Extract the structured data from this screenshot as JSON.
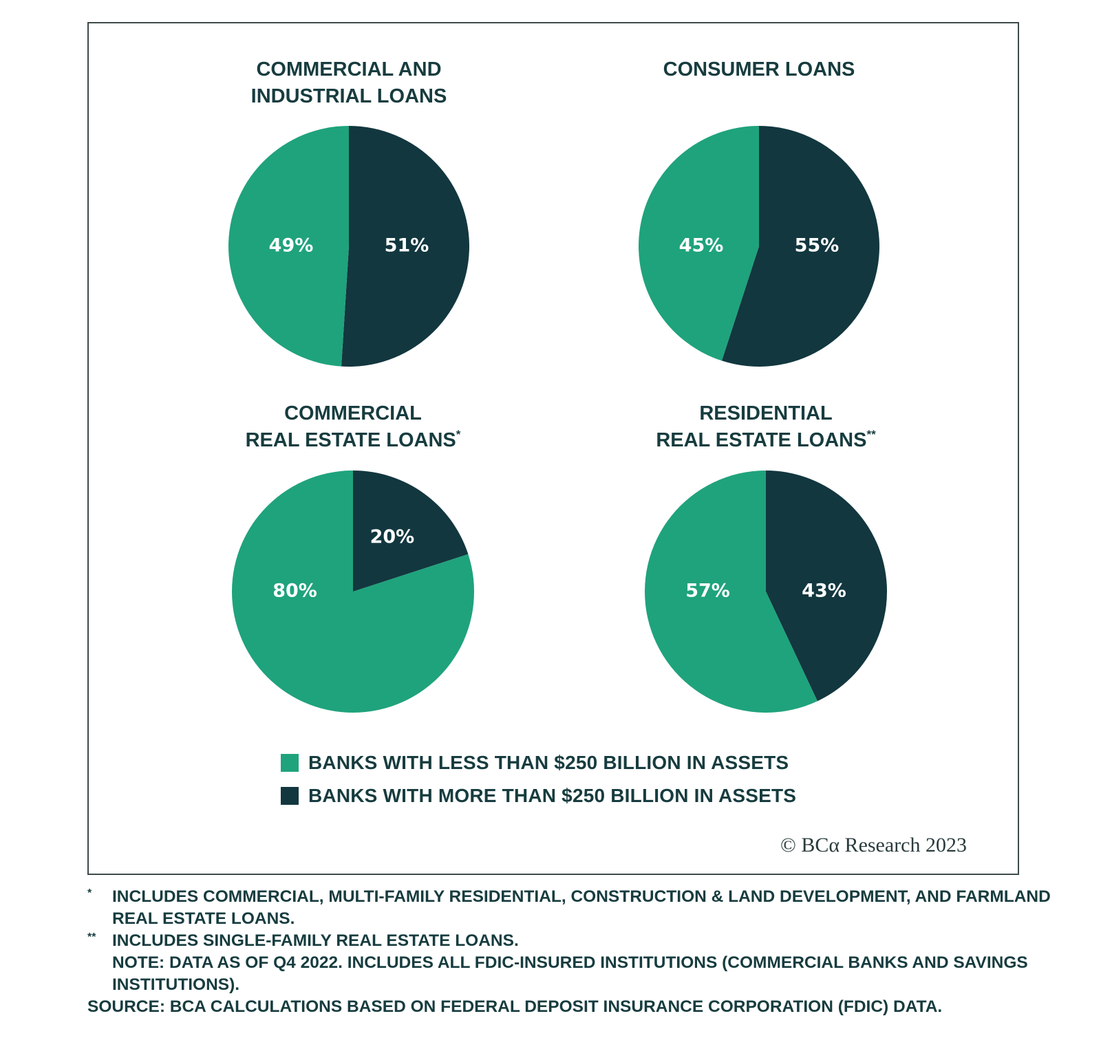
{
  "chart_data": [
    {
      "type": "pie",
      "title": [
        "COMMERCIAL AND",
        "INDUSTRIAL LOANS"
      ],
      "title_mark": "",
      "slices": [
        {
          "series": "small",
          "label": "49%",
          "value": 49
        },
        {
          "series": "large",
          "label": "51%",
          "value": 51
        }
      ]
    },
    {
      "type": "pie",
      "title": [
        "CONSUMER LOANS"
      ],
      "title_mark": "",
      "slices": [
        {
          "series": "small",
          "label": "45%",
          "value": 45
        },
        {
          "series": "large",
          "label": "55%",
          "value": 55
        }
      ]
    },
    {
      "type": "pie",
      "title": [
        "COMMERCIAL",
        "REAL ESTATE LOANS"
      ],
      "title_mark": "*",
      "slices": [
        {
          "series": "small",
          "label": "80%",
          "value": 80
        },
        {
          "series": "large",
          "label": "20%",
          "value": 20
        }
      ]
    },
    {
      "type": "pie",
      "title": [
        "RESIDENTIAL",
        "REAL ESTATE LOANS"
      ],
      "title_mark": "**",
      "slices": [
        {
          "series": "small",
          "label": "57%",
          "value": 57
        },
        {
          "series": "large",
          "label": "43%",
          "value": 43
        }
      ]
    }
  ],
  "legend": {
    "items": [
      {
        "label": "BANKS WITH LESS THAN $250 BILLION IN ASSETS",
        "color": "#1fa37c"
      },
      {
        "label": "BANKS WITH MORE THAN $250 BILLION IN ASSETS",
        "color": "#12373f"
      }
    ]
  },
  "colors": {
    "small": "#1fa37c",
    "large": "#12373f"
  },
  "credit": "© BCα Research 2023",
  "footnotes": {
    "mark1": "*",
    "note1": "INCLUDES COMMERCIAL, MULTI-FAMILY RESIDENTIAL, CONSTRUCTION & LAND DEVELOPMENT, AND FARMLAND REAL ESTATE LOANS.",
    "mark2": "**",
    "note2": "INCLUDES SINGLE-FAMILY REAL ESTATE LOANS.",
    "note3": "NOTE: DATA AS OF Q4 2022. INCLUDES ALL FDIC-INSURED INSTITUTIONS (COMMERCIAL BANKS AND SAVINGS INSTITUTIONS).",
    "source": "SOURCE: BCA CALCULATIONS BASED ON FEDERAL DEPOSIT INSURANCE CORPORATION (FDIC) DATA."
  }
}
